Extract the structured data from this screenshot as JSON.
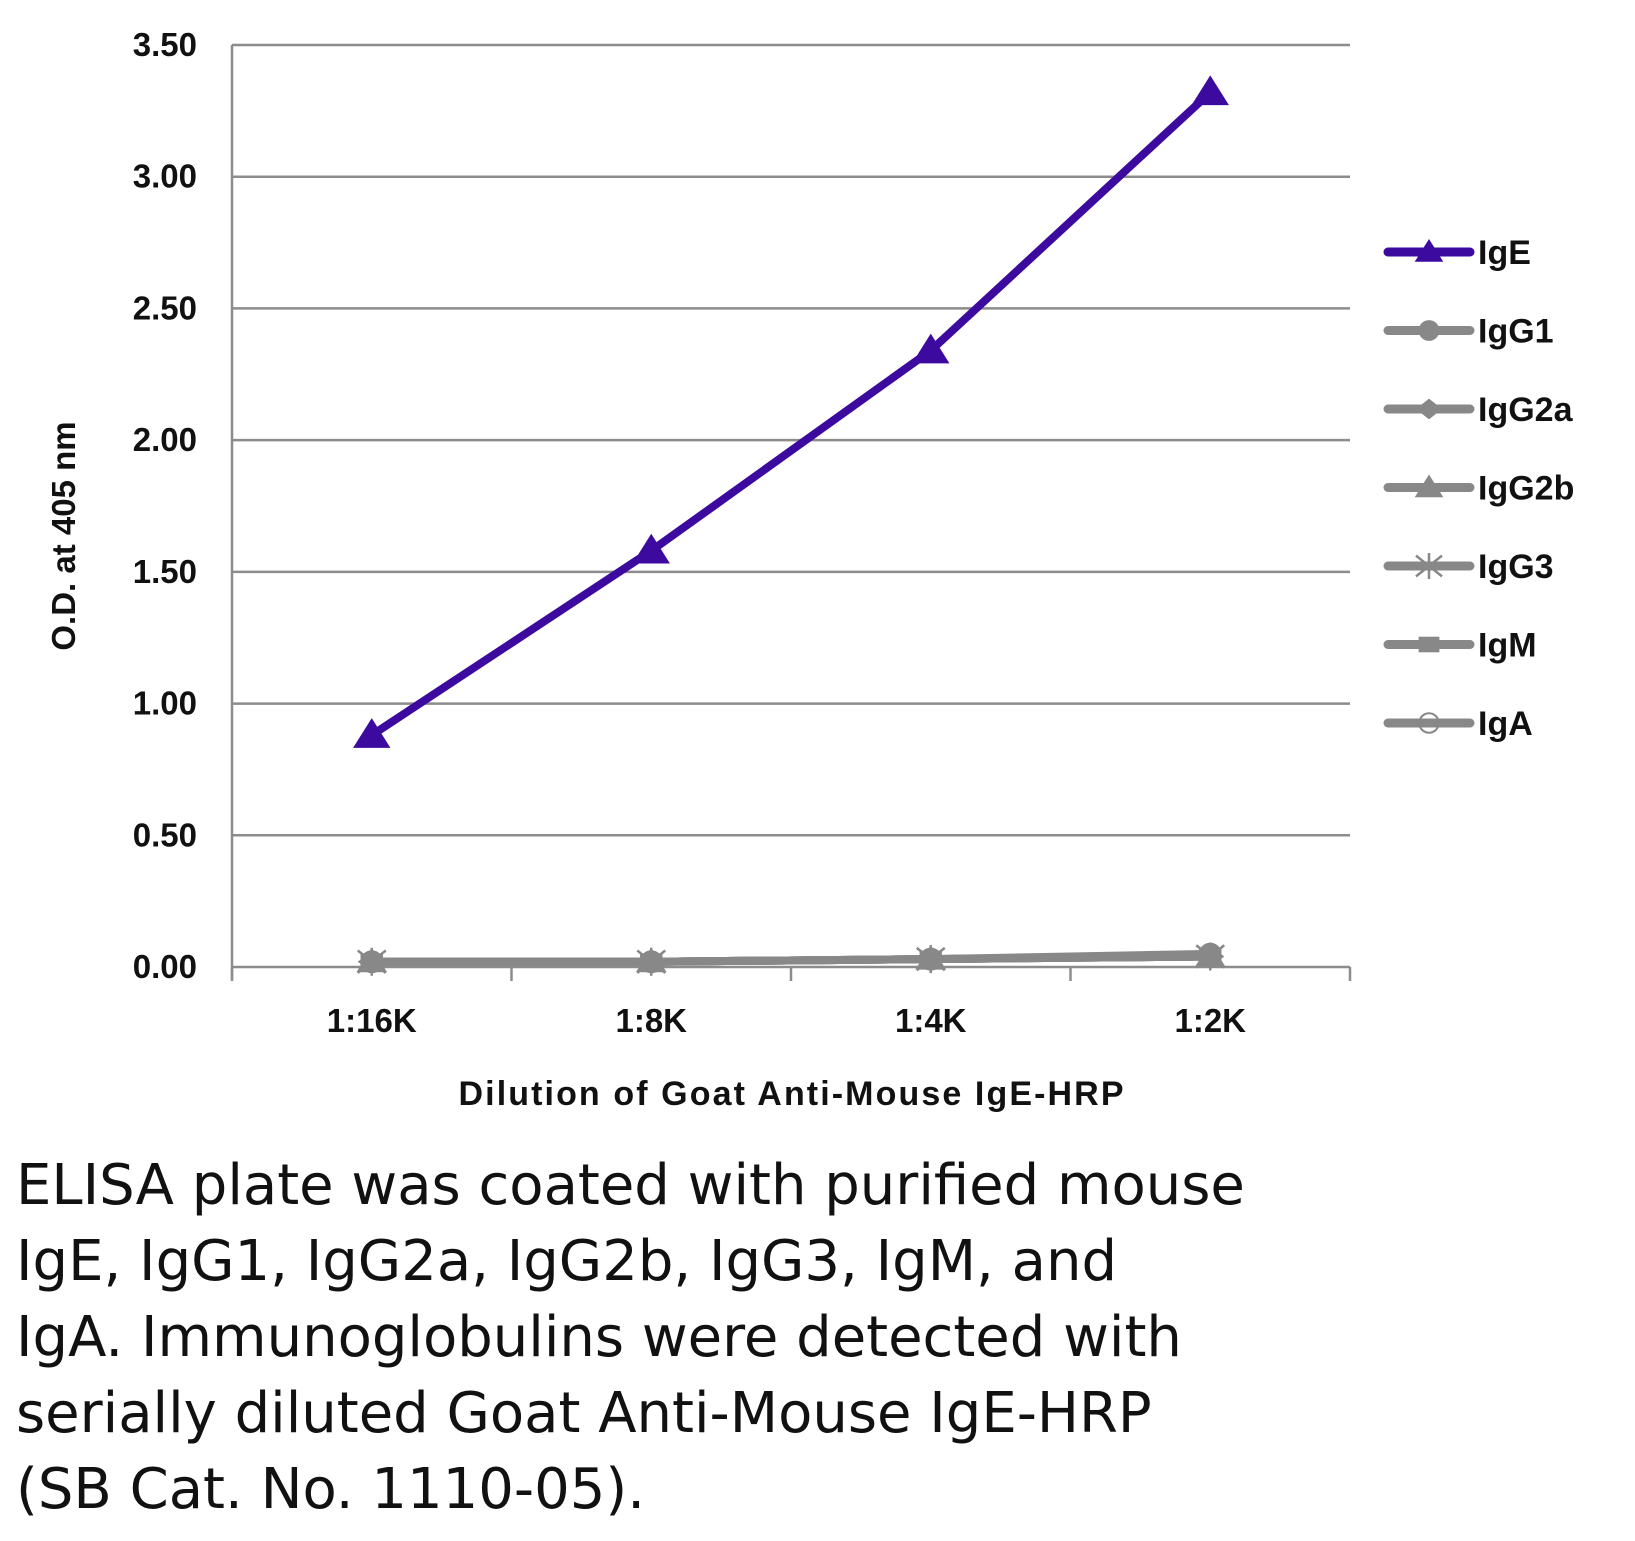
{
  "chart_data": {
    "type": "line",
    "title": "",
    "xlabel": "Dilution of Goat Anti-Mouse IgE-HRP",
    "ylabel": "O.D. at 405 nm",
    "categories": [
      "1:16K",
      "1:8K",
      "1:4K",
      "1:2K"
    ],
    "ylim": [
      0,
      3.5
    ],
    "yticks": [
      "0.00",
      "0.50",
      "1.00",
      "1.50",
      "2.00",
      "2.50",
      "3.00",
      "3.50"
    ],
    "grid": true,
    "legend_position": "right",
    "series": [
      {
        "name": "IgE",
        "values": [
          0.88,
          1.58,
          2.34,
          3.32
        ],
        "color": "#3d0aa0",
        "marker": "triangle"
      },
      {
        "name": "IgG1",
        "values": [
          0.02,
          0.02,
          0.03,
          0.05
        ],
        "color": "#888888",
        "marker": "circle"
      },
      {
        "name": "IgG2a",
        "values": [
          0.02,
          0.02,
          0.03,
          0.04
        ],
        "color": "#888888",
        "marker": "diamond"
      },
      {
        "name": "IgG2b",
        "values": [
          0.02,
          0.02,
          0.03,
          0.04
        ],
        "color": "#888888",
        "marker": "triangle"
      },
      {
        "name": "IgG3",
        "values": [
          0.02,
          0.02,
          0.03,
          0.04
        ],
        "color": "#888888",
        "marker": "star"
      },
      {
        "name": "IgM",
        "values": [
          0.02,
          0.02,
          0.03,
          0.04
        ],
        "color": "#888888",
        "marker": "square"
      },
      {
        "name": "IgA",
        "values": [
          0.02,
          0.02,
          0.03,
          0.04
        ],
        "color": "#888888",
        "marker": "open-circle"
      }
    ]
  },
  "caption": "ELISA plate was coated with purified mouse\nIgE, IgG1, IgG2a, IgG2b, IgG3, IgM, and\nIgA.  Immunoglobulins were detected with\nserially diluted Goat Anti-Mouse IgE-HRP\n(SB Cat. No. 1110-05)."
}
